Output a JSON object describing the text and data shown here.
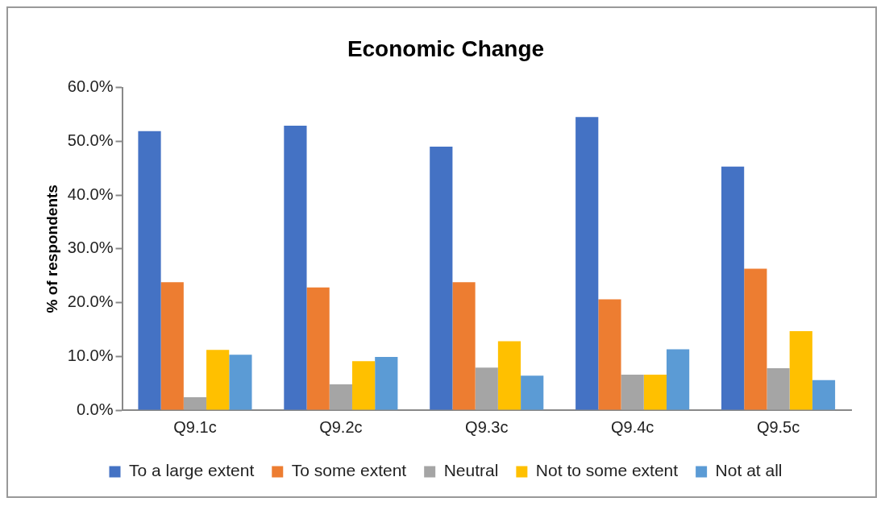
{
  "chart_data": {
    "type": "bar",
    "title": "Economic Change",
    "ylabel": "% of respondents",
    "categories": [
      "Q9.1c",
      "Q9.2c",
      "Q9.3c",
      "Q9.4c",
      "Q9.5c"
    ],
    "series": [
      {
        "name": "To a large extent",
        "color": "#4472c4",
        "values": [
          51.9,
          52.9,
          49.0,
          54.5,
          45.3
        ]
      },
      {
        "name": "To some extent",
        "color": "#ed7d31",
        "values": [
          23.8,
          22.8,
          23.8,
          20.6,
          26.3
        ]
      },
      {
        "name": "Neutral",
        "color": "#a5a5a5",
        "values": [
          2.4,
          4.8,
          7.9,
          6.6,
          7.8
        ]
      },
      {
        "name": "Not to some extent",
        "color": "#ffc000",
        "values": [
          11.2,
          9.1,
          12.8,
          6.6,
          14.7
        ]
      },
      {
        "name": "Not at all",
        "color": "#5b9bd5",
        "values": [
          10.3,
          9.9,
          6.4,
          11.3,
          5.6
        ]
      }
    ],
    "ylim": [
      0,
      60
    ],
    "yticks": [
      {
        "value": 0,
        "label": "0.0%"
      },
      {
        "value": 10,
        "label": "10.0%"
      },
      {
        "value": 20,
        "label": "20.0%"
      },
      {
        "value": 30,
        "label": "30.0%"
      },
      {
        "value": 40,
        "label": "40.0%"
      },
      {
        "value": 50,
        "label": "50.0%"
      },
      {
        "value": 60,
        "label": "60.0%"
      }
    ],
    "grid": false,
    "legend": "bottom"
  }
}
